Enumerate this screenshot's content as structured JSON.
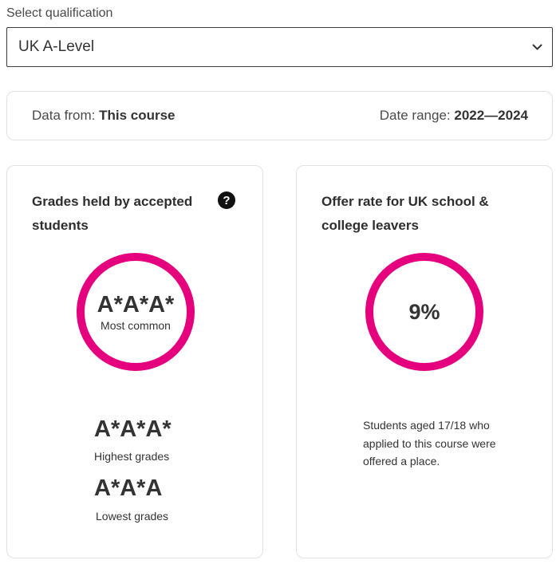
{
  "select": {
    "label": "Select qualification",
    "value": "UK A-Level"
  },
  "info": {
    "data_from_label": "Data from:",
    "data_from_value": "This course",
    "date_range_label": "Date range:",
    "date_range_value": "2022—2024"
  },
  "grades_card": {
    "title": "Grades held by accepted students",
    "help_symbol": "?",
    "most_common_value": "A*A*A*",
    "most_common_label": "Most common",
    "highest_value": "A*A*A*",
    "highest_label": "Highest grades",
    "lowest_value": "A*A*A",
    "lowest_label": "Lowest grades"
  },
  "offer_card": {
    "title": "Offer rate for UK school & college leavers",
    "rate": "9%",
    "description": "Students aged 17/18 who applied to this course were offered a place."
  },
  "colors": {
    "accent": "#e5007e",
    "text": "#333333",
    "border": "#e2e2e2"
  },
  "icons": {
    "select_chevron": "chevron-down-icon",
    "help": "question-circle-icon"
  }
}
